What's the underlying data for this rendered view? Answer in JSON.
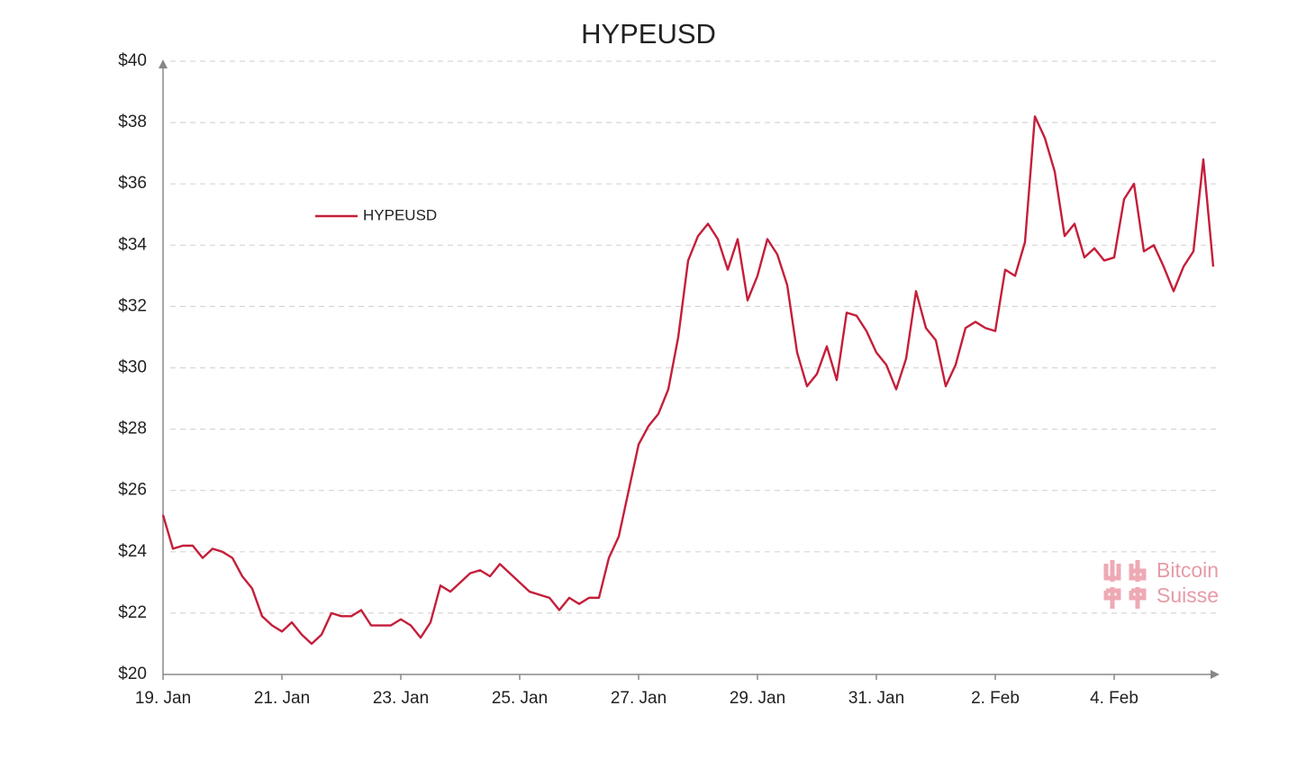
{
  "chart_data": {
    "type": "line",
    "title": "HYPEUSD",
    "categories": [
      "19. Jan",
      null,
      null,
      null,
      null,
      null,
      null,
      null,
      null,
      null,
      null,
      null,
      "21. Jan",
      null,
      null,
      null,
      null,
      null,
      null,
      null,
      null,
      null,
      null,
      null,
      "23. Jan",
      null,
      null,
      null,
      null,
      null,
      null,
      null,
      null,
      null,
      null,
      null,
      "25. Jan",
      null,
      null,
      null,
      null,
      null,
      null,
      null,
      null,
      null,
      null,
      null,
      "27. Jan",
      null,
      null,
      null,
      null,
      null,
      null,
      null,
      null,
      null,
      null,
      null,
      "29. Jan",
      null,
      null,
      null,
      null,
      null,
      null,
      null,
      null,
      null,
      null,
      null,
      "31. Jan",
      null,
      null,
      null,
      null,
      null,
      null,
      null,
      null,
      null,
      null,
      null,
      "2. Feb",
      null,
      null,
      null,
      null,
      null,
      null,
      null,
      null,
      null,
      null,
      null,
      "4. Feb",
      null,
      null,
      null,
      null,
      null,
      null,
      null,
      null,
      null,
      null
    ],
    "series": [
      {
        "name": "HYPEUSD",
        "color": "#c41e3a",
        "values": [
          25.2,
          24.1,
          24.2,
          24.2,
          23.8,
          24.1,
          24.0,
          23.8,
          23.2,
          22.8,
          21.9,
          21.6,
          21.4,
          21.7,
          21.3,
          21.0,
          21.3,
          22.0,
          21.9,
          21.9,
          22.1,
          21.6,
          21.6,
          21.6,
          21.8,
          21.6,
          21.2,
          21.7,
          22.9,
          22.7,
          23.0,
          23.3,
          23.4,
          23.2,
          23.6,
          23.3,
          23.0,
          22.7,
          22.6,
          22.5,
          22.1,
          22.5,
          22.3,
          22.5,
          22.5,
          23.8,
          24.5,
          26.0,
          27.5,
          28.1,
          28.5,
          29.3,
          31.0,
          33.5,
          34.3,
          34.7,
          34.2,
          33.2,
          34.2,
          32.2,
          33.0,
          34.2,
          33.7,
          32.7,
          30.5,
          29.4,
          29.8,
          30.7,
          29.6,
          31.8,
          31.7,
          31.2,
          30.5,
          30.1,
          29.3,
          30.3,
          32.5,
          31.3,
          30.9,
          29.4,
          30.1,
          31.3,
          31.5,
          31.3,
          31.2,
          33.2,
          33.0,
          34.1,
          38.2,
          37.5,
          36.4,
          34.3,
          34.7,
          33.6,
          33.9,
          33.5,
          33.6,
          35.5,
          36.0,
          33.8,
          34.0,
          33.3,
          32.5,
          33.3,
          33.8,
          36.8,
          33.3
        ]
      }
    ],
    "ylim": [
      20,
      40
    ],
    "yticks": [
      {
        "value": 20,
        "label": "$20"
      },
      {
        "value": 22,
        "label": "$22"
      },
      {
        "value": 24,
        "label": "$24"
      },
      {
        "value": 26,
        "label": "$26"
      },
      {
        "value": 28,
        "label": "$28"
      },
      {
        "value": 30,
        "label": "$30"
      },
      {
        "value": 32,
        "label": "$32"
      },
      {
        "value": 34,
        "label": "$34"
      },
      {
        "value": 36,
        "label": "$36"
      },
      {
        "value": 38,
        "label": "$38"
      },
      {
        "value": 40,
        "label": "$40"
      }
    ],
    "grid": true,
    "watermark": [
      "Bitcoin",
      "Suisse"
    ]
  }
}
